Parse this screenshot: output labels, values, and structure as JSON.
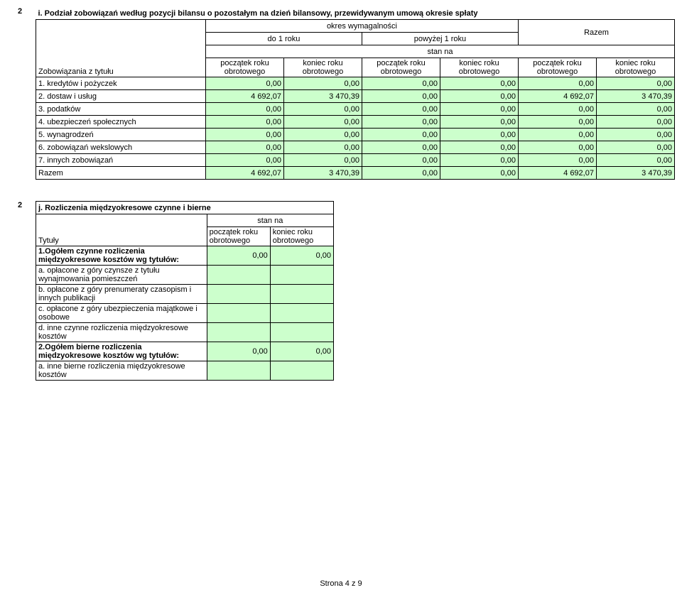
{
  "section1": {
    "num": "2",
    "title": "i. Podział zobowiązań według pozycji bilansu o pozostałym na dzień bilansowy, przewidywanym umową okresie spłaty",
    "h_period": "okres wymagalności",
    "h_do1": "do 1 roku",
    "h_pow1": "powyżej 1 roku",
    "h_razem": "Razem",
    "h_stan": "stan na",
    "h_row_label": "Zobowiązania z tytułu",
    "h_pocz": "początek roku obrotowego",
    "h_kon": "koniec roku obrotowego",
    "rows": [
      {
        "label": "1. kredytów i pożyczek",
        "v": [
          "0,00",
          "0,00",
          "0,00",
          "0,00",
          "0,00",
          "0,00"
        ]
      },
      {
        "label": "2. dostaw i usług",
        "v": [
          "4 692,07",
          "3 470,39",
          "0,00",
          "0,00",
          "4 692,07",
          "3 470,39"
        ]
      },
      {
        "label": "3. podatków",
        "v": [
          "0,00",
          "0,00",
          "0,00",
          "0,00",
          "0,00",
          "0,00"
        ]
      },
      {
        "label": "4. ubezpieczeń społecznych",
        "v": [
          "0,00",
          "0,00",
          "0,00",
          "0,00",
          "0,00",
          "0,00"
        ]
      },
      {
        "label": "5. wynagrodzeń",
        "v": [
          "0,00",
          "0,00",
          "0,00",
          "0,00",
          "0,00",
          "0,00"
        ]
      },
      {
        "label": "6. zobowiązań wekslowych",
        "v": [
          "0,00",
          "0,00",
          "0,00",
          "0,00",
          "0,00",
          "0,00"
        ]
      },
      {
        "label": "7. innych zobowiązań",
        "v": [
          "0,00",
          "0,00",
          "0,00",
          "0,00",
          "0,00",
          "0,00"
        ]
      },
      {
        "label": "Razem",
        "v": [
          "4 692,07",
          "3 470,39",
          "0,00",
          "0,00",
          "4 692,07",
          "3 470,39"
        ]
      }
    ]
  },
  "section2": {
    "num": "2",
    "title": "j. Rozliczenia międzyokresowe czynne i bierne",
    "h_stan": "stan na",
    "h_tytuly": "Tytuły",
    "h_pocz": "początek roku obrotowego",
    "h_kon": "koniec roku obrotowego",
    "rows": [
      {
        "label": "1.Ogółem czynne rozliczenia międzyokresowe kosztów wg tytułów:",
        "bold": true,
        "v": [
          "0,00",
          "0,00"
        ],
        "fill": true
      },
      {
        "label": "a. opłacone z góry czynsze z tytułu wynajmowania pomieszczeń",
        "v": [
          "",
          ""
        ],
        "fill": true
      },
      {
        "label": "b. opłacone z góry prenumeraty czasopism i innych publikacji",
        "v": [
          "",
          ""
        ],
        "fill": true
      },
      {
        "label": "c. opłacone z góry ubezpieczenia majątkowe i osobowe",
        "v": [
          "",
          ""
        ],
        "fill": true
      },
      {
        "label": "d. inne czynne rozliczenia międzyokresowe kosztów",
        "v": [
          "",
          ""
        ],
        "fill": true
      },
      {
        "label": "2.Ogółem bierne rozliczenia międzyokresowe kosztów wg tytułów:",
        "bold": true,
        "v": [
          "0,00",
          "0,00"
        ],
        "fill": true
      },
      {
        "label": "a. inne bierne rozliczenia międzyokresowe kosztów",
        "v": [
          "",
          ""
        ],
        "fill": true
      }
    ]
  },
  "footer": "Strona 4 z 9",
  "colors": {
    "fill": "#ccffcc"
  }
}
